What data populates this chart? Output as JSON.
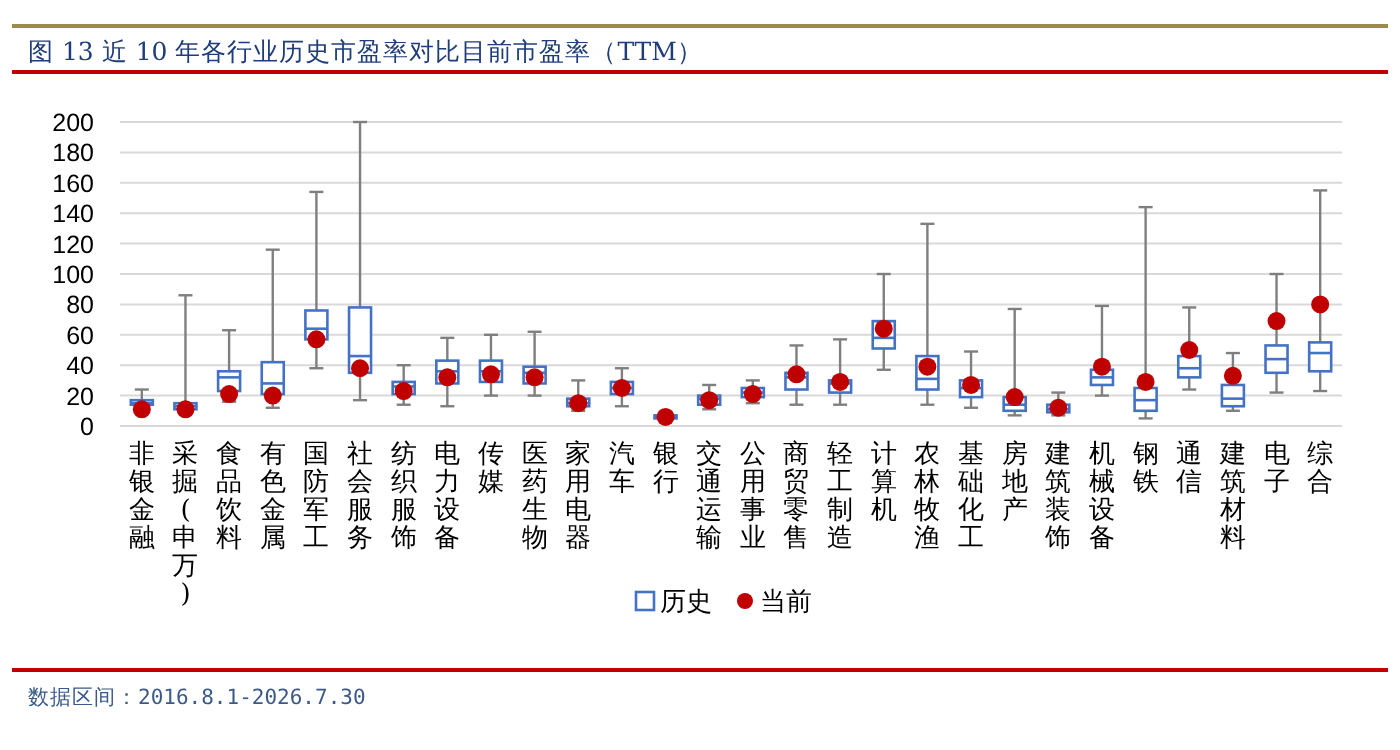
{
  "chart_data": {
    "type": "box",
    "title": "图 13  近 10 年各行业历史市盈率对比目前市盈率（TTM）",
    "categories": [
      "非银金融",
      "采掘(申万)",
      "食品饮料",
      "有色金属",
      "国防军工",
      "社会服务",
      "纺织服饰",
      "电力设备",
      "传媒",
      "医药生物",
      "家用电器",
      "汽车",
      "银行",
      "交通运输",
      "公用事业",
      "商贸零售",
      "轻工制造",
      "计算机",
      "农林牧渔",
      "基础化工",
      "房地产",
      "建筑装饰",
      "机械设备",
      "钢铁",
      "通信",
      "建筑材料",
      "电子",
      "综合"
    ],
    "ylim": [
      0,
      200
    ],
    "yticks": [
      0,
      20,
      40,
      60,
      80,
      100,
      120,
      140,
      160,
      180,
      200
    ],
    "grid": "y",
    "legend": "bottom",
    "annotations": [
      "数据区间：2016.8.1-2026.7.30"
    ],
    "series": [
      {
        "name": "历史",
        "type": "box",
        "color": "#4472c4",
        "boxes": [
          {
            "low": 12,
            "q1": 14,
            "median": 15,
            "q3": 17,
            "high": 24
          },
          {
            "low": 10,
            "q1": 11,
            "median": 13,
            "q3": 15,
            "high": 86
          },
          {
            "low": 16,
            "q1": 23,
            "median": 32,
            "q3": 36,
            "high": 63
          },
          {
            "low": 12,
            "q1": 21,
            "median": 28,
            "q3": 42,
            "high": 116
          },
          {
            "low": 38,
            "q1": 57,
            "median": 64,
            "q3": 76,
            "high": 154
          },
          {
            "low": 17,
            "q1": 35,
            "median": 46,
            "q3": 78,
            "high": 200
          },
          {
            "low": 14,
            "q1": 21,
            "median": 26,
            "q3": 29,
            "high": 40
          },
          {
            "low": 13,
            "q1": 28,
            "median": 36,
            "q3": 43,
            "high": 58
          },
          {
            "low": 20,
            "q1": 29,
            "median": 36,
            "q3": 43,
            "high": 60
          },
          {
            "low": 20,
            "q1": 28,
            "median": 35,
            "q3": 39,
            "high": 62
          },
          {
            "low": 10,
            "q1": 13,
            "median": 15,
            "q3": 18,
            "high": 30
          },
          {
            "low": 13,
            "q1": 21,
            "median": 25,
            "q3": 29,
            "high": 38
          },
          {
            "low": 4,
            "q1": 5,
            "median": 6,
            "q3": 7,
            "high": 7
          },
          {
            "low": 11,
            "q1": 14,
            "median": 18,
            "q3": 20,
            "high": 27
          },
          {
            "low": 15,
            "q1": 19,
            "median": 22,
            "q3": 25,
            "high": 30
          },
          {
            "low": 14,
            "q1": 24,
            "median": 32,
            "q3": 35,
            "high": 53
          },
          {
            "low": 14,
            "q1": 22,
            "median": 28,
            "q3": 30,
            "high": 57
          },
          {
            "low": 37,
            "q1": 51,
            "median": 58,
            "q3": 69,
            "high": 100
          },
          {
            "low": 14,
            "q1": 24,
            "median": 31,
            "q3": 46,
            "high": 133
          },
          {
            "low": 12,
            "q1": 19,
            "median": 25,
            "q3": 30,
            "high": 49
          },
          {
            "low": 7,
            "q1": 10,
            "median": 14,
            "q3": 19,
            "high": 77
          },
          {
            "low": 7,
            "q1": 9,
            "median": 11,
            "q3": 14,
            "high": 22
          },
          {
            "low": 20,
            "q1": 27,
            "median": 32,
            "q3": 37,
            "high": 79
          },
          {
            "low": 5,
            "q1": 10,
            "median": 17,
            "q3": 25,
            "high": 144
          },
          {
            "low": 24,
            "q1": 32,
            "median": 38,
            "q3": 46,
            "high": 78
          },
          {
            "low": 10,
            "q1": 13,
            "median": 18,
            "q3": 27,
            "high": 48
          },
          {
            "low": 22,
            "q1": 35,
            "median": 44,
            "q3": 53,
            "high": 100
          },
          {
            "low": 23,
            "q1": 36,
            "median": 48,
            "q3": 55,
            "high": 155
          }
        ]
      },
      {
        "name": "当前",
        "type": "scatter",
        "color": "#c00000",
        "marker": "circle",
        "x": [
          "非银金融",
          "采掘(申万)",
          "食品饮料",
          "有色金属",
          "国防军工",
          "社会服务",
          "纺织服饰",
          "电力设备",
          "传媒",
          "医药生物",
          "家用电器",
          "汽车",
          "银行",
          "交通运输",
          "公用事业",
          "商贸零售",
          "轻工制造",
          "计算机",
          "农林牧渔",
          "基础化工",
          "房地产",
          "建筑装饰",
          "机械设备",
          "钢铁",
          "通信",
          "建筑材料",
          "电子",
          "综合"
        ],
        "values": [
          11,
          11,
          21,
          20,
          57,
          38,
          23,
          32,
          34,
          32,
          15,
          25,
          6,
          17,
          21,
          34,
          29,
          64,
          39,
          27,
          19,
          12,
          39,
          29,
          50,
          33,
          69,
          80
        ]
      }
    ]
  }
}
